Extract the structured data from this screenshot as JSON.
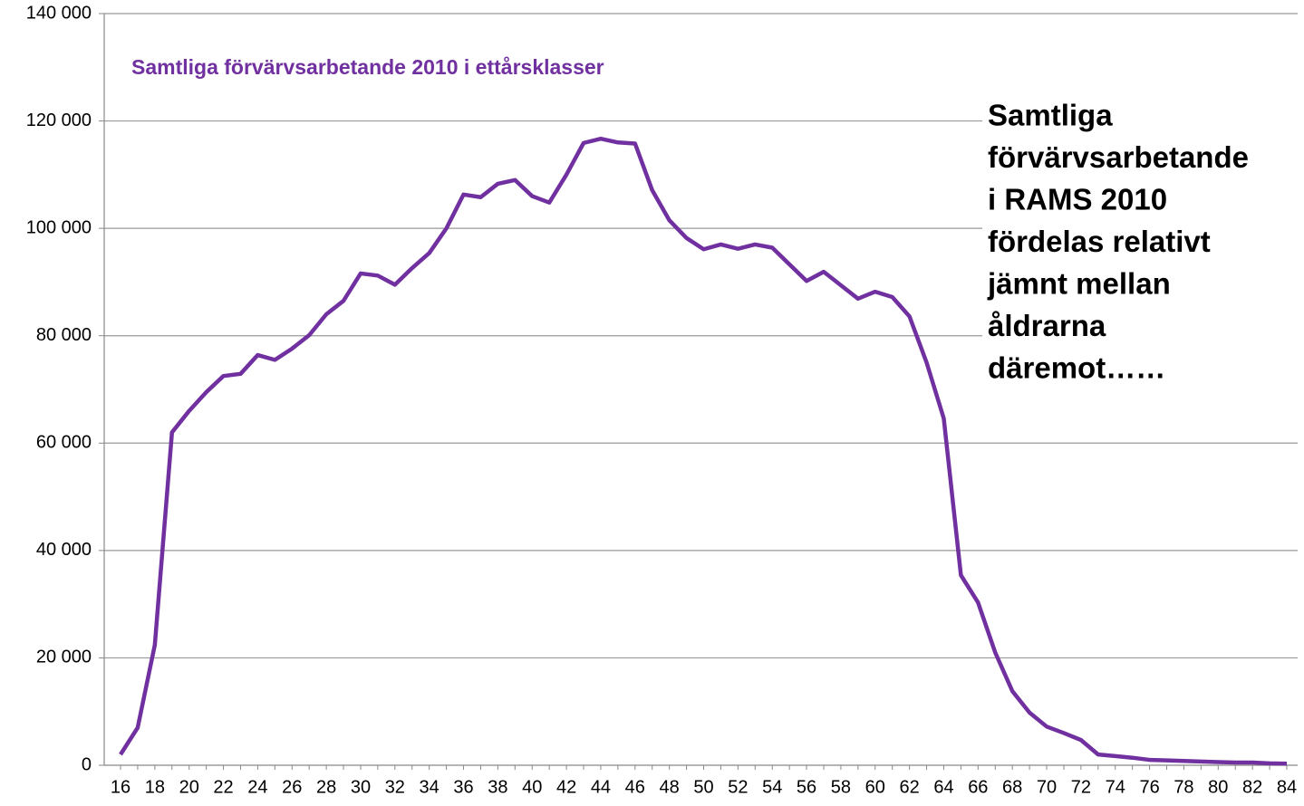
{
  "chart_data": {
    "type": "line",
    "title": "Samtliga förvärvsarbetande 2010 i ettårsklasser",
    "annotation": [
      "Samtliga",
      "förvärvsarbetande",
      "i RAMS 2010",
      "fördelas relativt",
      "jämnt mellan",
      "åldrarna",
      "däremot……"
    ],
    "categories": [
      "16",
      null,
      "18",
      null,
      "20",
      null,
      "22",
      null,
      "24",
      null,
      "26",
      null,
      "28",
      null,
      "30",
      null,
      "32",
      null,
      "34",
      null,
      "36",
      null,
      "38",
      null,
      "40",
      null,
      "42",
      null,
      "44",
      null,
      "46",
      null,
      "48",
      null,
      "50",
      null,
      "52",
      null,
      "54",
      null,
      "56",
      null,
      "58",
      null,
      "60",
      null,
      "62",
      null,
      "64",
      null,
      "66",
      null,
      "68",
      null,
      "70",
      null,
      "72",
      null,
      "74",
      null,
      "76",
      null,
      "78",
      null,
      "80",
      null,
      "82",
      null,
      "84"
    ],
    "series": [
      {
        "name": "Samtliga förvärvsarbetande 2010 i ettårsklasser",
        "color": "#7030a0",
        "values": [
          2000,
          7000,
          22400,
          62000,
          66000,
          69500,
          72500,
          72900,
          76400,
          75500,
          77600,
          80100,
          84000,
          86500,
          91600,
          91200,
          89500,
          92600,
          95400,
          100000,
          106300,
          105800,
          108300,
          109000,
          106000,
          104800,
          110000,
          115900,
          116700,
          116000,
          115800,
          107100,
          101500,
          98200,
          96100,
          97000,
          96200,
          97000,
          96400,
          93300,
          90200,
          91900,
          89400,
          86900,
          88200,
          87200,
          83600,
          75000,
          64600,
          35400,
          30300,
          21000,
          13800,
          9800,
          7200,
          6000,
          4700,
          2000,
          1700,
          1400,
          1000,
          900,
          800,
          700,
          600,
          500,
          500,
          350,
          300
        ]
      }
    ],
    "ylim": [
      0,
      140000
    ],
    "yticks": [
      0,
      {
        "value": 20000,
        "label": "20 000"
      },
      {
        "value": 40000,
        "label": "40 000"
      },
      {
        "value": 60000,
        "label": "60 000"
      },
      {
        "value": 80000,
        "label": "80 000"
      },
      {
        "value": 100000,
        "label": "100 000"
      },
      {
        "value": 120000,
        "label": "120 000"
      },
      {
        "value": 140000,
        "label": "140 000"
      }
    ],
    "grid": true
  }
}
